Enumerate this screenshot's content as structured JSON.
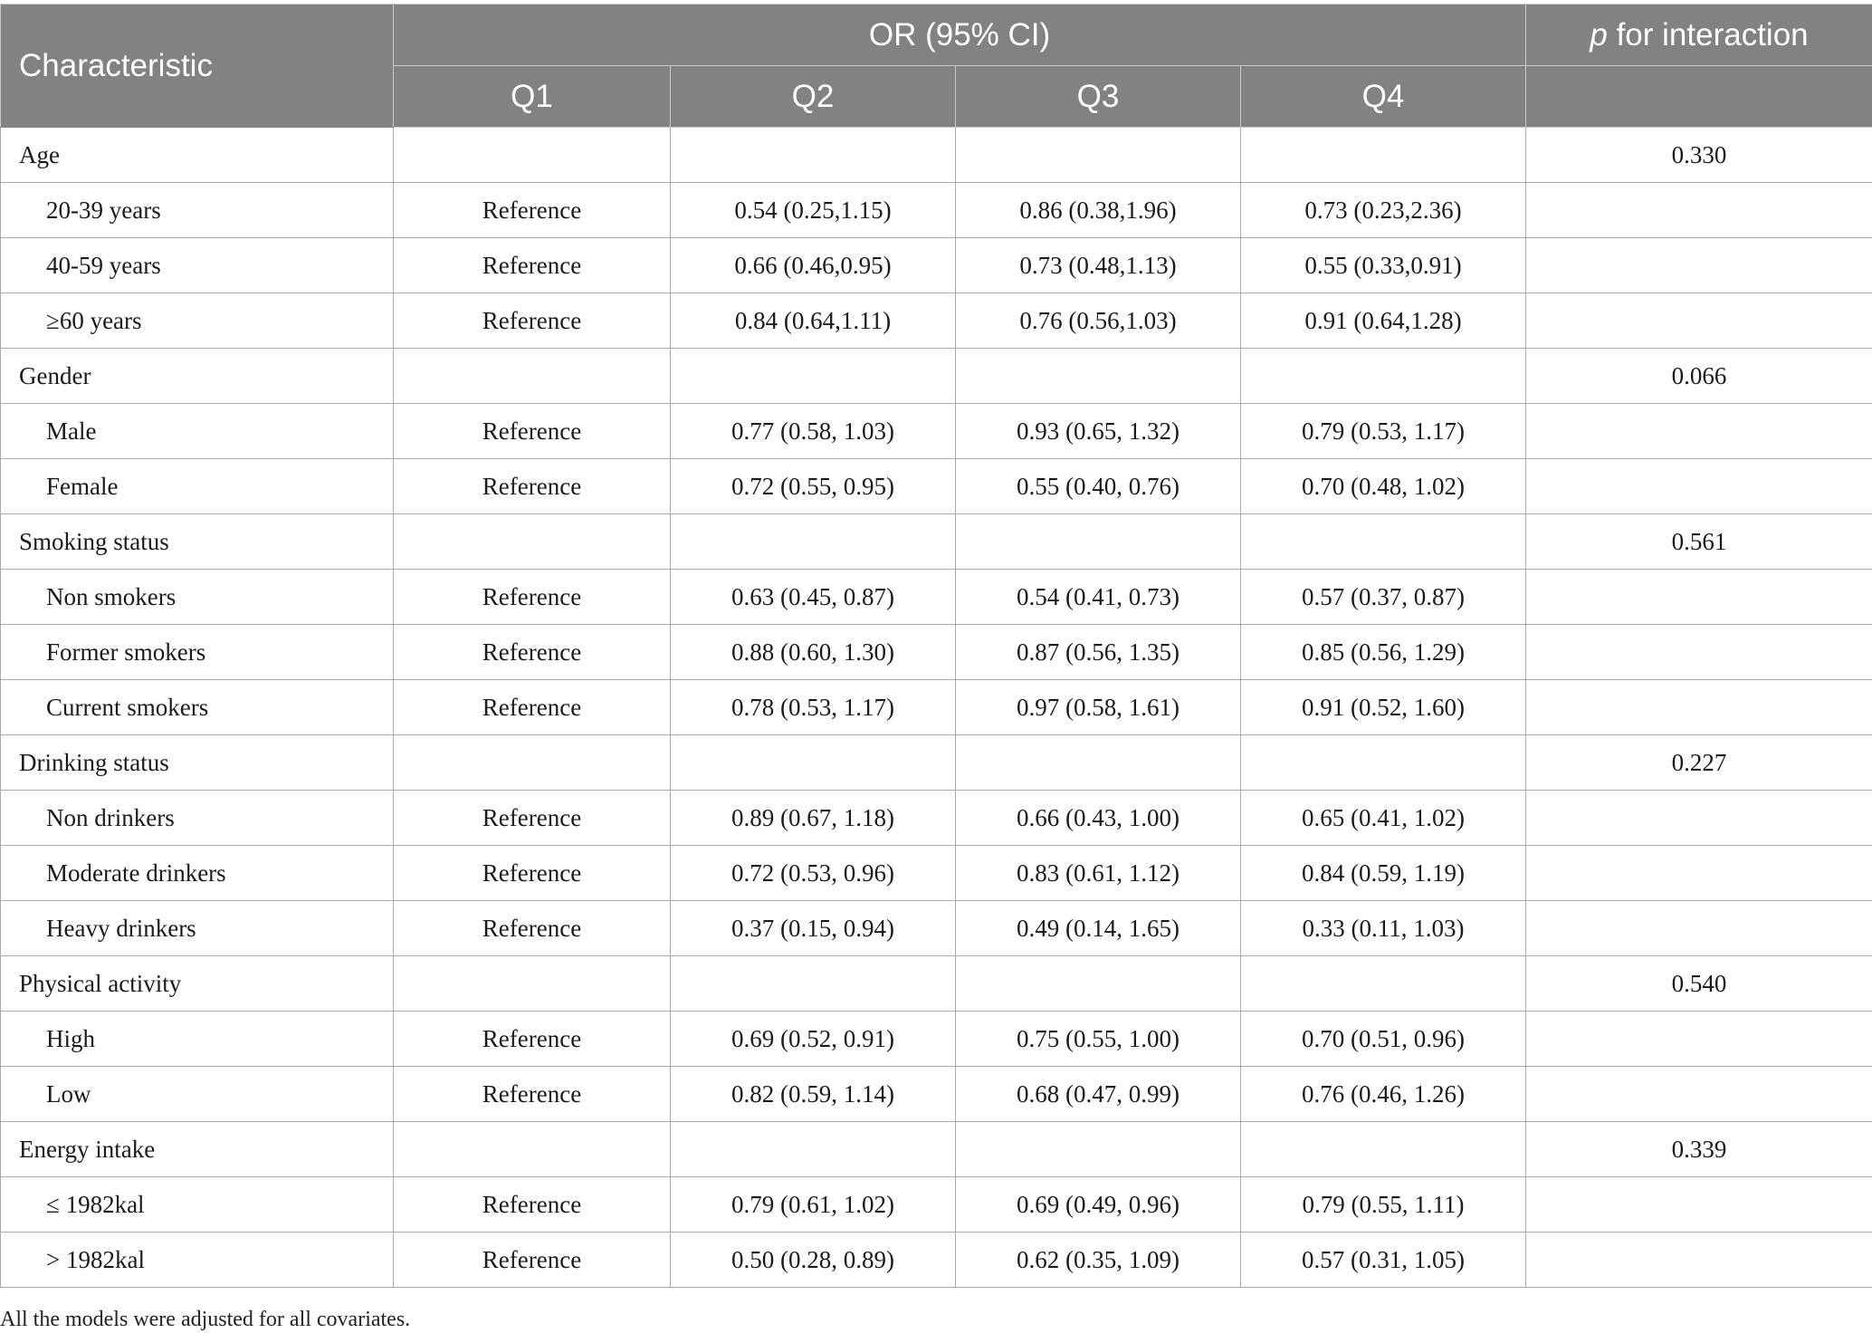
{
  "header": {
    "characteristic": "Characteristic",
    "or_group": "OR (95% CI)",
    "p_italic": "p",
    "p_rest": " for interaction",
    "quartiles": [
      "Q1",
      "Q2",
      "Q3",
      "Q4"
    ]
  },
  "rows": [
    {
      "type": "group",
      "label": "Age",
      "p": "0.330"
    },
    {
      "type": "sub",
      "label": "20-39 years",
      "q1": "Reference",
      "q2": "0.54 (0.25,1.15)",
      "q3": "0.86 (0.38,1.96)",
      "q4": "0.73 (0.23,2.36)"
    },
    {
      "type": "sub",
      "label": "40-59 years",
      "q1": "Reference",
      "q2": "0.66 (0.46,0.95)",
      "q3": "0.73 (0.48,1.13)",
      "q4": "0.55 (0.33,0.91)"
    },
    {
      "type": "sub",
      "label": "≥60 years",
      "q1": "Reference",
      "q2": "0.84 (0.64,1.11)",
      "q3": "0.76 (0.56,1.03)",
      "q4": "0.91 (0.64,1.28)"
    },
    {
      "type": "group",
      "label": "Gender",
      "p": "0.066"
    },
    {
      "type": "sub",
      "label": "Male",
      "q1": "Reference",
      "q2": "0.77 (0.58, 1.03)",
      "q3": "0.93 (0.65, 1.32)",
      "q4": "0.79 (0.53, 1.17)"
    },
    {
      "type": "sub",
      "label": "Female",
      "q1": "Reference",
      "q2": "0.72 (0.55, 0.95)",
      "q3": "0.55 (0.40, 0.76)",
      "q4": "0.70 (0.48, 1.02)"
    },
    {
      "type": "group",
      "label": "Smoking status",
      "p": "0.561"
    },
    {
      "type": "sub",
      "label": "Non smokers",
      "q1": "Reference",
      "q2": "0.63 (0.45, 0.87)",
      "q3": "0.54 (0.41, 0.73)",
      "q4": "0.57 (0.37, 0.87)"
    },
    {
      "type": "sub",
      "label": "Former smokers",
      "q1": "Reference",
      "q2": "0.88 (0.60, 1.30)",
      "q3": "0.87 (0.56, 1.35)",
      "q4": "0.85 (0.56, 1.29)"
    },
    {
      "type": "sub",
      "label": "Current smokers",
      "q1": "Reference",
      "q2": "0.78 (0.53, 1.17)",
      "q3": "0.97 (0.58, 1.61)",
      "q4": "0.91 (0.52, 1.60)"
    },
    {
      "type": "group",
      "label": "Drinking status",
      "p": "0.227"
    },
    {
      "type": "sub",
      "label": "Non drinkers",
      "q1": "Reference",
      "q2": "0.89 (0.67, 1.18)",
      "q3": "0.66 (0.43, 1.00)",
      "q4": "0.65 (0.41, 1.02)"
    },
    {
      "type": "sub",
      "label": "Moderate drinkers",
      "q1": "Reference",
      "q2": "0.72 (0.53, 0.96)",
      "q3": "0.83 (0.61, 1.12)",
      "q4": "0.84 (0.59, 1.19)"
    },
    {
      "type": "sub",
      "label": "Heavy drinkers",
      "q1": "Reference",
      "q2": "0.37 (0.15, 0.94)",
      "q3": "0.49 (0.14, 1.65)",
      "q4": "0.33 (0.11, 1.03)"
    },
    {
      "type": "group",
      "label": "Physical activity",
      "p": "0.540"
    },
    {
      "type": "sub",
      "label": "High",
      "q1": "Reference",
      "q2": "0.69 (0.52, 0.91)",
      "q3": "0.75 (0.55, 1.00)",
      "q4": "0.70 (0.51, 0.96)"
    },
    {
      "type": "sub",
      "label": "Low",
      "q1": "Reference",
      "q2": "0.82 (0.59, 1.14)",
      "q3": "0.68 (0.47, 0.99)",
      "q4": "0.76 (0.46, 1.26)"
    },
    {
      "type": "group",
      "label": "Energy intake",
      "p": "0.339"
    },
    {
      "type": "sub",
      "label": "≤ 1982kal",
      "q1": "Reference",
      "q2": "0.79 (0.61, 1.02)",
      "q3": "0.69 (0.49, 0.96)",
      "q4": "0.79 (0.55, 1.11)"
    },
    {
      "type": "sub",
      "label": "> 1982kal",
      "q1": "Reference",
      "q2": "0.50 (0.28, 0.89)",
      "q3": "0.62 (0.35, 1.09)",
      "q4": "0.57 (0.31, 1.05)"
    }
  ],
  "footnote": "All the models were adjusted for all covariates.",
  "colors": {
    "header_bg": "#818381",
    "header_text": "#ffffff",
    "grid": "#a9aaa9"
  }
}
